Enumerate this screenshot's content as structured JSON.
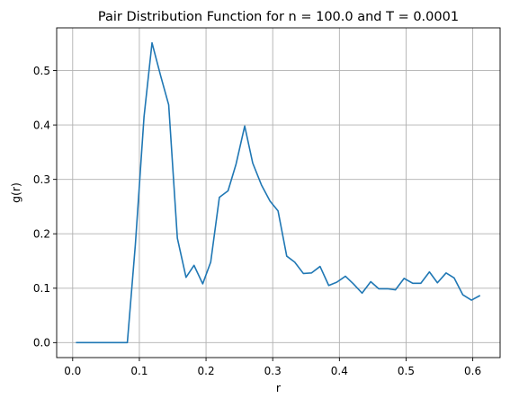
{
  "chart_data": {
    "type": "line",
    "title": "Pair Distribution Function for n = 100.0 and T = 0.0001",
    "xlabel": "r",
    "ylabel": "g(r)",
    "xlim": [
      -0.024,
      0.641
    ],
    "ylim": [
      -0.0275,
      0.5785
    ],
    "grid": true,
    "x_ticks": [
      0.0,
      0.1,
      0.2,
      0.3,
      0.4,
      0.5,
      0.6
    ],
    "x_tick_labels": [
      "0.0",
      "0.1",
      "0.2",
      "0.3",
      "0.4",
      "0.5",
      "0.6"
    ],
    "y_ticks": [
      0.0,
      0.1,
      0.2,
      0.3,
      0.4,
      0.5
    ],
    "y_tick_labels": [
      "0.0",
      "0.1",
      "0.2",
      "0.3",
      "0.4",
      "0.5"
    ],
    "series": [
      {
        "color": "#1f77b4",
        "x": [
          0.006,
          0.019,
          0.031,
          0.044,
          0.057,
          0.069,
          0.082,
          0.094,
          0.107,
          0.119,
          0.132,
          0.144,
          0.157,
          0.17,
          0.182,
          0.195,
          0.207,
          0.22,
          0.233,
          0.245,
          0.258,
          0.27,
          0.283,
          0.296,
          0.308,
          0.321,
          0.333,
          0.346,
          0.358,
          0.371,
          0.384,
          0.396,
          0.409,
          0.421,
          0.434,
          0.447,
          0.459,
          0.472,
          0.484,
          0.497,
          0.51,
          0.522,
          0.535,
          0.547,
          0.56,
          0.572,
          0.585,
          0.598,
          0.61
        ],
        "y": [
          0.0,
          0.0,
          0.0,
          0.0,
          0.0,
          0.0,
          0.0,
          0.18,
          0.415,
          0.551,
          0.49,
          0.437,
          0.192,
          0.12,
          0.142,
          0.108,
          0.148,
          0.267,
          0.279,
          0.328,
          0.398,
          0.33,
          0.29,
          0.26,
          0.242,
          0.159,
          0.148,
          0.127,
          0.128,
          0.14,
          0.105,
          0.111,
          0.122,
          0.108,
          0.091,
          0.112,
          0.099,
          0.099,
          0.097,
          0.118,
          0.109,
          0.109,
          0.13,
          0.11,
          0.128,
          0.119,
          0.088,
          0.078,
          0.086
        ]
      }
    ]
  }
}
